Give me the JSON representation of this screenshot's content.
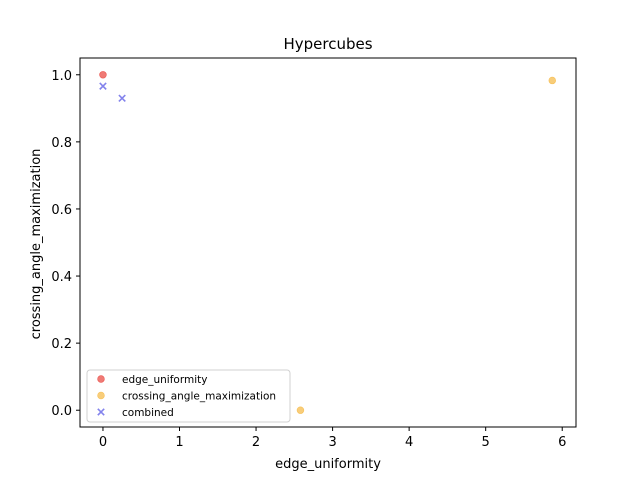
{
  "chart_data": {
    "type": "scatter",
    "title": "Hypercubes",
    "xlabel": "edge_uniformity",
    "ylabel": "crossing_angle_maximization",
    "xlim": [
      -0.3,
      6.18
    ],
    "ylim": [
      -0.05,
      1.05
    ],
    "xticks": [
      0,
      1,
      2,
      3,
      4,
      5,
      6
    ],
    "yticks": [
      0.0,
      0.2,
      0.4,
      0.6,
      0.8,
      1.0
    ],
    "xtick_labels": [
      "0",
      "1",
      "2",
      "3",
      "4",
      "5",
      "6"
    ],
    "ytick_labels": [
      "0.0",
      "0.2",
      "0.4",
      "0.6",
      "0.8",
      "1.0"
    ],
    "grid": false,
    "legend_position": "lower-left",
    "series": [
      {
        "name": "edge_uniformity",
        "marker": "circle",
        "color": "#e8413b",
        "points": [
          {
            "x": 0.0,
            "y": 1.0
          }
        ]
      },
      {
        "name": "crossing_angle_maximization",
        "marker": "circle",
        "color": "#f5b841",
        "points": [
          {
            "x": 5.87,
            "y": 0.983
          },
          {
            "x": 2.58,
            "y": 0.0
          }
        ]
      },
      {
        "name": "combined",
        "marker": "x",
        "color": "#5a5ae6",
        "points": [
          {
            "x": 0.0,
            "y": 0.966
          },
          {
            "x": 0.25,
            "y": 0.93
          }
        ]
      }
    ]
  }
}
